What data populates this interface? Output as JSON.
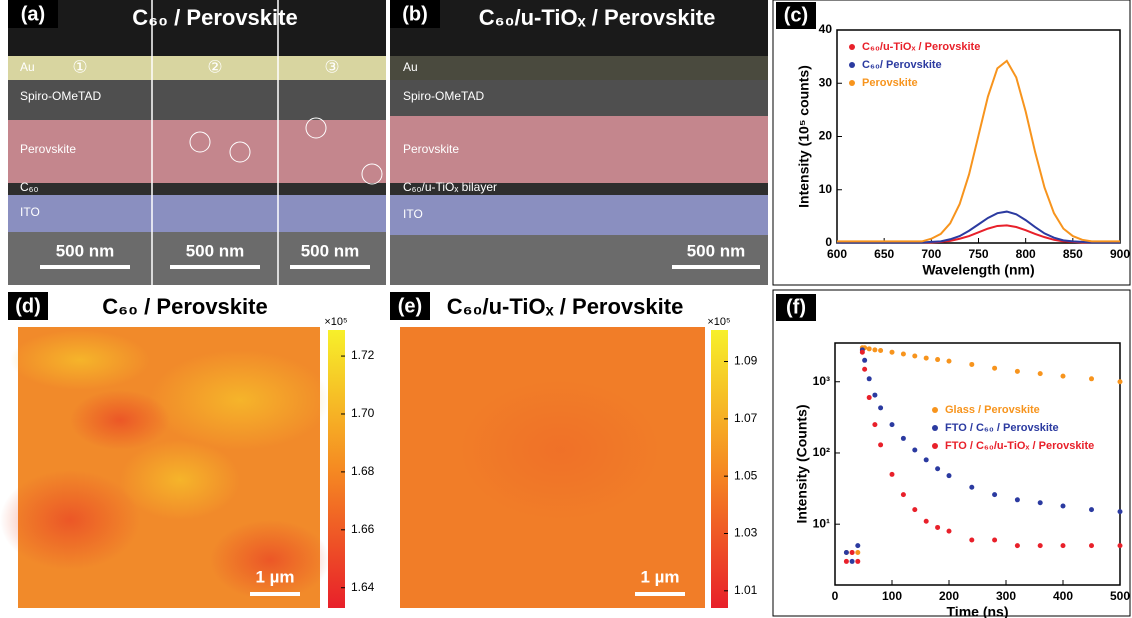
{
  "panels": {
    "a": {
      "tag": "(a)",
      "title": "C₆₀ / Perovskite",
      "layers": [
        "Au",
        "Spiro-OMeTAD",
        "Perovskite",
        "C₆₀",
        "ITO"
      ],
      "markers": [
        "①",
        "②",
        "③"
      ],
      "scale_bars": [
        "500 nm",
        "500 nm",
        "500 nm"
      ]
    },
    "b": {
      "tag": "(b)",
      "title": "C₆₀/u-TiOₓ / Perovskite",
      "layers": [
        "Au",
        "Spiro-OMeTAD",
        "Perovskite",
        "C₆₀/u-TiOₓ bilayer",
        "ITO"
      ],
      "scale_bar": "500 nm"
    },
    "d": {
      "tag": "(d)",
      "title": "C₆₀ / Perovskite",
      "scale_bar": "1 µm",
      "colorbar": {
        "multiplier": "×10⁵",
        "lim": [
          1.633,
          1.729
        ],
        "ticks": [
          1.64,
          1.66,
          1.68,
          {
            "value": 1.7,
            "label": "1.70"
          },
          1.72
        ]
      }
    },
    "e": {
      "tag": "(e)",
      "title": "C₆₀/u-TiOₓ / Perovskite",
      "scale_bar": "1 µm",
      "colorbar": {
        "multiplier": "×10⁵",
        "lim": [
          1.004,
          1.101
        ],
        "ticks": [
          1.01,
          1.03,
          1.05,
          1.07,
          1.09
        ]
      }
    }
  },
  "chart_data": [
    {
      "type": "line",
      "tag": "(c)",
      "x_label": "Wavelength (nm)",
      "y_label": "Intensity (10⁵ counts)",
      "x": [
        600,
        610,
        620,
        630,
        640,
        650,
        660,
        670,
        680,
        690,
        700,
        710,
        720,
        730,
        740,
        750,
        760,
        770,
        780,
        790,
        800,
        810,
        820,
        830,
        840,
        850,
        860,
        870,
        880,
        890,
        900
      ],
      "series": [
        {
          "name": "C₆₀/u-TiOₓ / Perovskite",
          "color": "#e8202a",
          "values": [
            0.1,
            0.1,
            0.1,
            0.1,
            0.1,
            0.1,
            0.1,
            0.1,
            0.1,
            0.1,
            0.1,
            0.2,
            0.4,
            0.8,
            1.3,
            2.0,
            2.7,
            3.2,
            3.3,
            3.0,
            2.4,
            1.7,
            1.1,
            0.6,
            0.3,
            0.2,
            0.1,
            0.1,
            0.1,
            0.1,
            0.1
          ]
        },
        {
          "name": "C₆₀/ Perovskite",
          "color": "#2b3aa0",
          "values": [
            0.1,
            0.1,
            0.1,
            0.1,
            0.1,
            0.1,
            0.1,
            0.1,
            0.1,
            0.1,
            0.2,
            0.3,
            0.7,
            1.3,
            2.3,
            3.5,
            4.7,
            5.6,
            5.9,
            5.4,
            4.3,
            3.0,
            1.8,
            1.0,
            0.5,
            0.3,
            0.2,
            0.1,
            0.1,
            0.1,
            0.1
          ]
        },
        {
          "name": "Perovskite",
          "color": "#f7941d",
          "values": [
            0.3,
            0.3,
            0.3,
            0.3,
            0.3,
            0.3,
            0.3,
            0.3,
            0.3,
            0.3,
            0.8,
            1.7,
            3.7,
            7.3,
            12.9,
            20.2,
            27.5,
            32.8,
            34.2,
            31.1,
            24.7,
            17.1,
            10.4,
            5.6,
            2.7,
            1.3,
            0.6,
            0.3,
            0.3,
            0.3,
            0.3
          ]
        }
      ],
      "xlim": [
        600,
        900
      ],
      "xticks": [
        600,
        650,
        700,
        750,
        800,
        850,
        900
      ],
      "ylim": [
        0,
        40
      ],
      "yticks": [
        0,
        10,
        20,
        30,
        40
      ]
    },
    {
      "type": "scatter",
      "tag": "(f)",
      "x_label": "Time (ns)",
      "y_label": "Intensity (Counts)",
      "log_y": true,
      "x": [
        20,
        30,
        40,
        48,
        52,
        60,
        70,
        80,
        100,
        120,
        140,
        160,
        180,
        200,
        240,
        280,
        320,
        360,
        400,
        450,
        500
      ],
      "series": [
        {
          "name": "Glass / Perovskite",
          "color": "#f7941d",
          "values": [
            4,
            4,
            4,
            3000,
            3000,
            2900,
            2800,
            2750,
            2600,
            2450,
            2300,
            2150,
            2050,
            1950,
            1750,
            1550,
            1400,
            1300,
            1200,
            1100,
            1000
          ]
        },
        {
          "name": "FTO / C₆₀ / Perovskite",
          "color": "#2b3aa0",
          "values": [
            4,
            3,
            5,
            2800,
            2000,
            1100,
            650,
            430,
            250,
            160,
            110,
            80,
            60,
            48,
            33,
            26,
            22,
            20,
            18,
            16,
            15
          ]
        },
        {
          "name": "FTO / C₆₀/u-TiOₓ / Perovskite",
          "color": "#e8202a",
          "values": [
            3,
            4,
            3,
            2600,
            1500,
            600,
            250,
            130,
            50,
            26,
            16,
            11,
            9,
            8,
            6,
            6,
            5,
            5,
            5,
            5,
            5
          ]
        }
      ],
      "xlim": [
        0,
        500
      ],
      "xticks": [
        0,
        100,
        200,
        300,
        400,
        500
      ],
      "ylim": [
        1.4,
        3500
      ],
      "yticks": [
        {
          "value": 10,
          "label": "10¹"
        },
        {
          "value": 100,
          "label": "10²"
        },
        {
          "value": 1000,
          "label": "10³"
        }
      ]
    }
  ]
}
